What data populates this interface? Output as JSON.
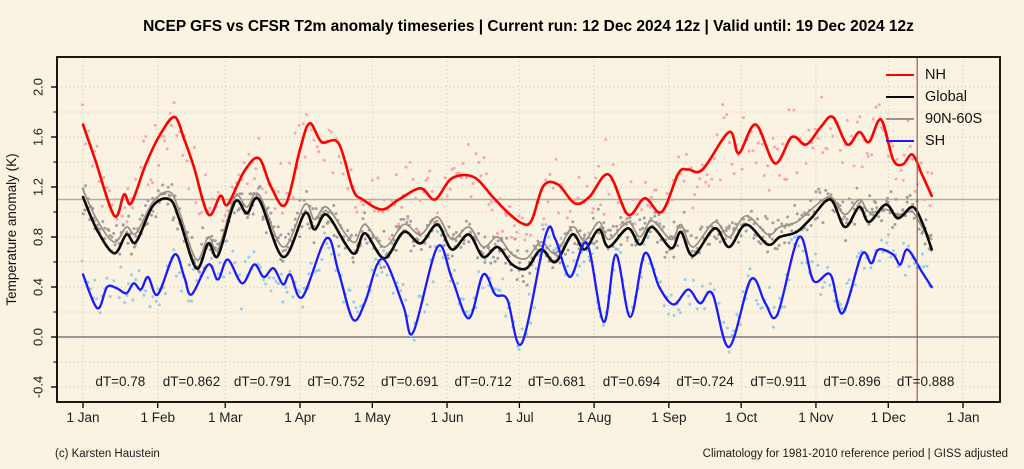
{
  "title": "NCEP GFS vs CFSR T2m anomaly timeseries | Current run: 12 Dec 2024 12z | Valid until: 19 Dec 2024 12z",
  "footer": {
    "left": "(c) Karsten Haustein",
    "right": "Climatology for 1981-2010 reference period | GISS adjusted"
  },
  "legend": [
    {
      "label": "NH",
      "color": "#ff0000"
    },
    {
      "label": "Global",
      "color": "#0a0a0a"
    },
    {
      "label": "90N-60S",
      "color": "#9c9084"
    },
    {
      "label": "SH",
      "color": "#1a1aff"
    }
  ],
  "chart_data": {
    "type": "line",
    "title": "NCEP GFS vs CFSR T2m anomaly timeseries",
    "xlabel": "",
    "ylabel": "Temperature anomaly (K)",
    "x_axis": {
      "tick_days": [
        0,
        31,
        59,
        90,
        120,
        151,
        181,
        212,
        243,
        273,
        304,
        334,
        365
      ],
      "tick_labels": [
        "1 Jan",
        "1 Feb",
        "1 Mar",
        "1 Apr",
        "1 May",
        "1 Jun",
        "1 Jul",
        "1 Aug",
        "1 Sep",
        "1 Oct",
        "1 Nov",
        "1 Dec",
        "1 Jan"
      ],
      "xlim_days": [
        -11,
        380
      ]
    },
    "y_axis": {
      "major_tick_values": [
        2.0,
        1.6,
        1.2,
        0.8,
        0.4,
        0.0,
        -0.4
      ],
      "major_tick_labels": [
        "2.0",
        "1.6",
        "1.2",
        "0.8",
        "0.4",
        "0.0",
        "-0.4"
      ],
      "minor_step": 0.2,
      "grid_min": -0.4,
      "grid_max": 2.0,
      "ylim": [
        -0.52,
        2.24
      ]
    },
    "grid": {
      "dotted_color": "#c9c1ae",
      "zero_line_value": 0.0,
      "zero_line_color": "#7a7a7a"
    },
    "reference_line": {
      "value": 1.1,
      "color": "#b6ada3"
    },
    "current_run_line": {
      "day": 346,
      "color": "#9e5a55"
    },
    "dt_labels": [
      {
        "text": "dT=0.78",
        "day": 15.5
      },
      {
        "text": "dT=0.862",
        "day": 45
      },
      {
        "text": "dT=0.791",
        "day": 74.5
      },
      {
        "text": "dT=0.752",
        "day": 105
      },
      {
        "text": "dT=0.691",
        "day": 135.5
      },
      {
        "text": "dT=0.712",
        "day": 166
      },
      {
        "text": "dT=0.681",
        "day": 196.5
      },
      {
        "text": "dT=0.694",
        "day": 227.5
      },
      {
        "text": "dT=0.724",
        "day": 258
      },
      {
        "text": "dT=0.911",
        "day": 288.5
      },
      {
        "text": "dT=0.896",
        "day": 319
      },
      {
        "text": "dT=0.888",
        "day": 349.5
      }
    ],
    "series": [
      {
        "name": "90N-60S",
        "color": "#9c9084",
        "width": 1.7,
        "scatter_color": "#9b9b9b",
        "scatter_amp": 0.095,
        "seed": 11,
        "points": [
          [
            0,
            1.18
          ],
          [
            6,
            0.93
          ],
          [
            13,
            0.76
          ],
          [
            18,
            0.88
          ],
          [
            22,
            0.83
          ],
          [
            29,
            1.08
          ],
          [
            36,
            1.16
          ],
          [
            40,
            1.0
          ],
          [
            47,
            0.62
          ],
          [
            52,
            0.8
          ],
          [
            56,
            0.7
          ],
          [
            63,
            1.12
          ],
          [
            68,
            1.04
          ],
          [
            73,
            1.14
          ],
          [
            83,
            0.72
          ],
          [
            92,
            1.06
          ],
          [
            96,
            0.94
          ],
          [
            101,
            1.04
          ],
          [
            109,
            0.82
          ],
          [
            113,
            0.76
          ],
          [
            117,
            0.9
          ],
          [
            125,
            0.72
          ],
          [
            133,
            0.9
          ],
          [
            140,
            0.82
          ],
          [
            147,
            0.96
          ],
          [
            153,
            0.78
          ],
          [
            160,
            0.88
          ],
          [
            166,
            0.72
          ],
          [
            172,
            0.8
          ],
          [
            178,
            0.66
          ],
          [
            184,
            0.63
          ],
          [
            190,
            0.76
          ],
          [
            196,
            0.67
          ],
          [
            203,
            0.88
          ],
          [
            208,
            0.77
          ],
          [
            214,
            0.92
          ],
          [
            218,
            0.78
          ],
          [
            226,
            0.92
          ],
          [
            231,
            0.8
          ],
          [
            236,
            0.93
          ],
          [
            244,
            0.78
          ],
          [
            248,
            0.9
          ],
          [
            253,
            0.72
          ],
          [
            262,
            0.92
          ],
          [
            268,
            0.8
          ],
          [
            275,
            0.97
          ],
          [
            284,
            0.82
          ],
          [
            289,
            0.88
          ],
          [
            296,
            0.92
          ],
          [
            302,
            1.02
          ],
          [
            310,
            1.12
          ],
          [
            316,
            0.98
          ],
          [
            322,
            1.1
          ],
          [
            326,
            1.0
          ],
          [
            333,
            1.02
          ],
          [
            338,
            0.98
          ],
          [
            344,
            1.0
          ],
          [
            348,
            0.88
          ],
          [
            352,
            0.78
          ]
        ]
      },
      {
        "name": "Global",
        "color": "#0a0a0a",
        "width": 2.6,
        "scatter_color": "#9b9b9b",
        "scatter_amp": 0.095,
        "seed": 23,
        "points": [
          [
            0,
            1.12
          ],
          [
            6,
            0.85
          ],
          [
            13,
            0.67
          ],
          [
            18,
            0.82
          ],
          [
            22,
            0.76
          ],
          [
            29,
            1.05
          ],
          [
            36,
            1.1
          ],
          [
            40,
            0.94
          ],
          [
            47,
            0.55
          ],
          [
            52,
            0.75
          ],
          [
            56,
            0.65
          ],
          [
            63,
            1.08
          ],
          [
            68,
            0.99
          ],
          [
            73,
            1.1
          ],
          [
            83,
            0.64
          ],
          [
            92,
            0.99
          ],
          [
            96,
            0.86
          ],
          [
            101,
            0.98
          ],
          [
            109,
            0.74
          ],
          [
            113,
            0.67
          ],
          [
            117,
            0.83
          ],
          [
            125,
            0.63
          ],
          [
            133,
            0.84
          ],
          [
            140,
            0.75
          ],
          [
            147,
            0.9
          ],
          [
            153,
            0.7
          ],
          [
            160,
            0.82
          ],
          [
            166,
            0.64
          ],
          [
            172,
            0.72
          ],
          [
            178,
            0.58
          ],
          [
            184,
            0.55
          ],
          [
            190,
            0.7
          ],
          [
            196,
            0.6
          ],
          [
            203,
            0.82
          ],
          [
            208,
            0.7
          ],
          [
            214,
            0.86
          ],
          [
            218,
            0.72
          ],
          [
            226,
            0.87
          ],
          [
            231,
            0.74
          ],
          [
            236,
            0.88
          ],
          [
            244,
            0.71
          ],
          [
            248,
            0.84
          ],
          [
            253,
            0.65
          ],
          [
            262,
            0.87
          ],
          [
            268,
            0.72
          ],
          [
            275,
            0.9
          ],
          [
            284,
            0.74
          ],
          [
            289,
            0.8
          ],
          [
            296,
            0.84
          ],
          [
            302,
            0.95
          ],
          [
            310,
            1.1
          ],
          [
            316,
            0.88
          ],
          [
            322,
            1.04
          ],
          [
            326,
            0.92
          ],
          [
            333,
            1.06
          ],
          [
            338,
            0.95
          ],
          [
            344,
            1.04
          ],
          [
            348,
            0.92
          ],
          [
            352,
            0.7
          ]
        ]
      },
      {
        "name": "SH",
        "color": "#1a1aff",
        "width": 2.3,
        "scatter_color": "#8fcaec",
        "scatter_amp": 0.125,
        "seed": 37,
        "points": [
          [
            0,
            0.5
          ],
          [
            6,
            0.23
          ],
          [
            10,
            0.4
          ],
          [
            14,
            0.39
          ],
          [
            18,
            0.35
          ],
          [
            21,
            0.43
          ],
          [
            24,
            0.38
          ],
          [
            27,
            0.48
          ],
          [
            31,
            0.34
          ],
          [
            38,
            0.66
          ],
          [
            42,
            0.48
          ],
          [
            45,
            0.34
          ],
          [
            52,
            0.58
          ],
          [
            56,
            0.46
          ],
          [
            60,
            0.62
          ],
          [
            66,
            0.43
          ],
          [
            71,
            0.58
          ],
          [
            75,
            0.48
          ],
          [
            79,
            0.55
          ],
          [
            83,
            0.42
          ],
          [
            86,
            0.5
          ],
          [
            91,
            0.32
          ],
          [
            101,
            0.79
          ],
          [
            106,
            0.52
          ],
          [
            112,
            0.14
          ],
          [
            117,
            0.28
          ],
          [
            122,
            0.58
          ],
          [
            126,
            0.59
          ],
          [
            133,
            0.24
          ],
          [
            137,
            0.04
          ],
          [
            147,
            0.72
          ],
          [
            153,
            0.47
          ],
          [
            160,
            0.15
          ],
          [
            166,
            0.5
          ],
          [
            171,
            0.34
          ],
          [
            176,
            0.3
          ],
          [
            182,
            -0.05
          ],
          [
            192,
            0.82
          ],
          [
            196,
            0.78
          ],
          [
            202,
            0.48
          ],
          [
            209,
            0.75
          ],
          [
            216,
            0.12
          ],
          [
            221,
            0.66
          ],
          [
            227,
            0.16
          ],
          [
            233,
            0.67
          ],
          [
            239,
            0.4
          ],
          [
            245,
            0.26
          ],
          [
            251,
            0.38
          ],
          [
            256,
            0.27
          ],
          [
            261,
            0.35
          ],
          [
            268,
            -0.08
          ],
          [
            277,
            0.46
          ],
          [
            283,
            0.27
          ],
          [
            288,
            0.18
          ],
          [
            297,
            0.8
          ],
          [
            303,
            0.45
          ],
          [
            310,
            0.5
          ],
          [
            315,
            0.19
          ],
          [
            323,
            0.66
          ],
          [
            327,
            0.59
          ],
          [
            330,
            0.7
          ],
          [
            336,
            0.66
          ],
          [
            339,
            0.58
          ],
          [
            342,
            0.7
          ],
          [
            348,
            0.52
          ],
          [
            352,
            0.4
          ]
        ]
      },
      {
        "name": "NH",
        "color": "#ff0000",
        "width": 2.6,
        "scatter_color": "#f9a0ae",
        "scatter_amp": 0.2,
        "seed": 5,
        "points": [
          [
            0,
            1.7
          ],
          [
            5,
            1.42
          ],
          [
            13,
            0.97
          ],
          [
            17,
            1.14
          ],
          [
            20,
            1.07
          ],
          [
            26,
            1.38
          ],
          [
            32,
            1.62
          ],
          [
            38,
            1.76
          ],
          [
            42,
            1.58
          ],
          [
            46,
            1.36
          ],
          [
            52,
            0.98
          ],
          [
            57,
            1.13
          ],
          [
            60,
            1.06
          ],
          [
            67,
            1.33
          ],
          [
            73,
            1.43
          ],
          [
            78,
            1.2
          ],
          [
            84,
            1.06
          ],
          [
            90,
            1.5
          ],
          [
            94,
            1.71
          ],
          [
            99,
            1.56
          ],
          [
            106,
            1.55
          ],
          [
            112,
            1.18
          ],
          [
            116,
            1.1
          ],
          [
            124,
            1.02
          ],
          [
            131,
            1.1
          ],
          [
            140,
            1.19
          ],
          [
            146,
            1.1
          ],
          [
            153,
            1.27
          ],
          [
            162,
            1.28
          ],
          [
            170,
            1.12
          ],
          [
            176,
            1.0
          ],
          [
            182,
            0.91
          ],
          [
            186,
            0.93
          ],
          [
            191,
            1.21
          ],
          [
            197,
            1.22
          ],
          [
            204,
            1.07
          ],
          [
            210,
            1.12
          ],
          [
            218,
            1.3
          ],
          [
            226,
            0.98
          ],
          [
            233,
            1.11
          ],
          [
            240,
            1.0
          ],
          [
            247,
            1.31
          ],
          [
            251,
            1.34
          ],
          [
            257,
            1.34
          ],
          [
            268,
            1.64
          ],
          [
            272,
            1.47
          ],
          [
            279,
            1.7
          ],
          [
            287,
            1.39
          ],
          [
            294,
            1.6
          ],
          [
            300,
            1.54
          ],
          [
            306,
            1.68
          ],
          [
            311,
            1.76
          ],
          [
            317,
            1.54
          ],
          [
            322,
            1.64
          ],
          [
            326,
            1.56
          ],
          [
            331,
            1.74
          ],
          [
            336,
            1.42
          ],
          [
            340,
            1.38
          ],
          [
            344,
            1.46
          ],
          [
            348,
            1.3
          ],
          [
            352,
            1.13
          ]
        ]
      }
    ],
    "data_end_day": 352
  }
}
